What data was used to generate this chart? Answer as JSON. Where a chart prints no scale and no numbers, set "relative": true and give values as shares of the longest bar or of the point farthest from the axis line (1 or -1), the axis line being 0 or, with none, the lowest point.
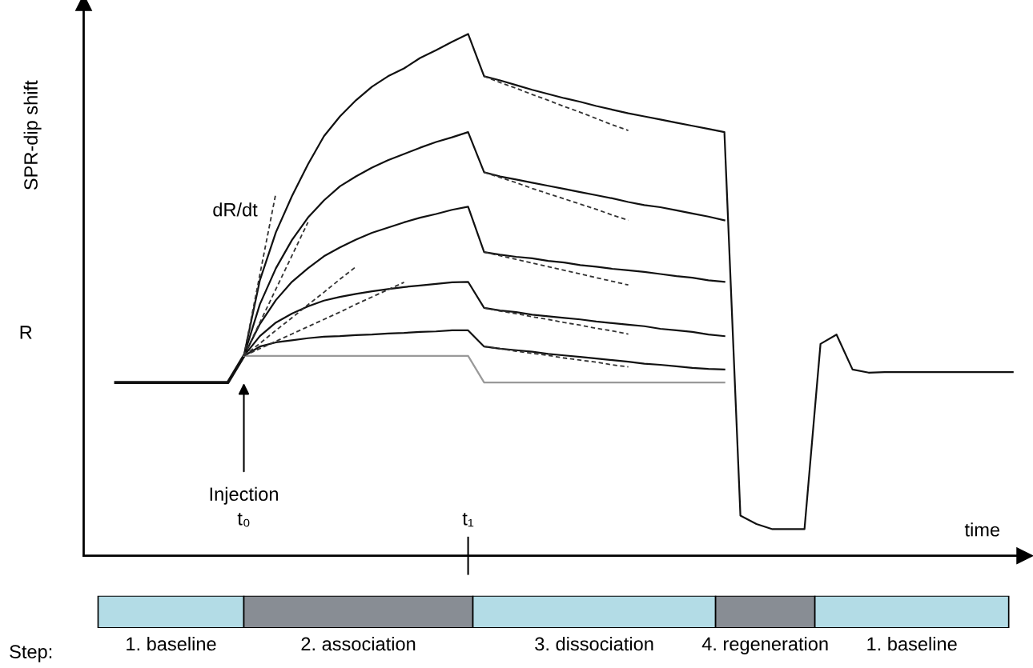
{
  "chart_data": {
    "type": "line",
    "relative": true,
    "ylabel": "SPR-dip shift",
    "xlabel": "time",
    "categories": [
      null,
      null,
      null,
      null,
      null,
      null,
      null,
      null,
      null,
      null,
      "t₀",
      null,
      null,
      null,
      null,
      null,
      null,
      null,
      null,
      null,
      null,
      null,
      null,
      null,
      "t₁",
      null,
      null,
      null,
      null,
      null,
      null,
      null,
      null,
      null,
      null,
      null,
      null,
      null,
      null,
      null,
      null,
      null,
      null,
      null,
      null,
      null,
      null,
      null,
      null,
      null,
      null,
      null,
      null,
      null,
      null,
      null,
      null,
      null,
      null
    ],
    "grid": false,
    "legend": false,
    "marker": "none",
    "series": [
      {
        "color": "#111111",
        "values": [
          null,
          null,
          0.332,
          0.332,
          0.332,
          0.332,
          0.332,
          0.332,
          0.332,
          0.332,
          0.383,
          null,
          null,
          null,
          null,
          null,
          null,
          null,
          null,
          null,
          null,
          null,
          null,
          null,
          null,
          null,
          null,
          null,
          null,
          null,
          null,
          null,
          null,
          null,
          null,
          null,
          null,
          null,
          null,
          null,
          null,
          null,
          null,
          null,
          null,
          null,
          null,
          null,
          null,
          null,
          null,
          null,
          null,
          null,
          null,
          null,
          null,
          null,
          null
        ]
      },
      {
        "color": "#111111",
        "values": [
          null,
          null,
          null,
          null,
          null,
          null,
          null,
          null,
          null,
          null,
          0.383,
          0.528,
          0.62,
          0.689,
          0.75,
          0.804,
          0.842,
          0.873,
          0.899,
          0.919,
          0.934,
          0.954,
          0.969,
          0.985,
          1.0,
          0.919,
          0.911,
          0.902,
          0.893,
          0.885,
          0.877,
          0.87,
          0.862,
          0.855,
          0.848,
          0.842,
          0.836,
          0.83,
          0.824,
          0.818,
          0.812,
          0.077,
          0.061,
          0.051,
          0.051,
          0.051,
          0.406,
          0.424,
          0.357,
          0.351,
          0.352,
          0.352,
          0.352,
          0.352,
          0.352,
          0.352,
          0.352,
          0.352,
          0.352
        ]
      },
      {
        "color": "#111111",
        "values": [
          null,
          null,
          null,
          null,
          null,
          null,
          null,
          null,
          null,
          null,
          0.383,
          0.482,
          0.551,
          0.605,
          0.648,
          0.681,
          0.708,
          0.727,
          0.744,
          0.758,
          0.77,
          0.782,
          0.793,
          0.802,
          0.812,
          0.735,
          0.727,
          0.721,
          0.715,
          0.709,
          0.703,
          0.697,
          0.691,
          0.685,
          0.678,
          0.672,
          0.668,
          0.662,
          0.656,
          0.65,
          0.643,
          null,
          null,
          null,
          null,
          null,
          null,
          null,
          null,
          null,
          null,
          null,
          null,
          null,
          null,
          null,
          null,
          null,
          null
        ]
      },
      {
        "color": "#111111",
        "values": [
          null,
          null,
          null,
          null,
          null,
          null,
          null,
          null,
          null,
          null,
          0.383,
          0.444,
          0.49,
          0.525,
          0.551,
          0.574,
          0.591,
          0.606,
          0.619,
          0.629,
          0.639,
          0.648,
          0.655,
          0.663,
          0.669,
          0.582,
          0.577,
          0.573,
          0.57,
          0.565,
          0.562,
          0.557,
          0.554,
          0.55,
          0.547,
          0.544,
          0.54,
          0.536,
          0.533,
          0.528,
          0.525,
          null,
          null,
          null,
          null,
          null,
          null,
          null,
          null,
          null,
          null,
          null,
          null,
          null,
          null,
          null,
          null,
          null,
          null
        ]
      },
      {
        "color": "#111111",
        "values": [
          null,
          null,
          null,
          null,
          null,
          null,
          null,
          null,
          null,
          null,
          0.383,
          0.421,
          0.447,
          0.464,
          0.478,
          0.489,
          0.496,
          0.502,
          0.507,
          0.511,
          0.515,
          0.518,
          0.521,
          0.524,
          0.525,
          0.475,
          0.47,
          0.467,
          0.462,
          0.459,
          0.456,
          0.453,
          0.449,
          0.446,
          0.443,
          0.44,
          0.435,
          0.432,
          0.429,
          0.424,
          0.421,
          null,
          null,
          null,
          null,
          null,
          null,
          null,
          null,
          null,
          null,
          null,
          null,
          null,
          null,
          null,
          null,
          null,
          null
        ]
      },
      {
        "color": "#111111",
        "values": [
          null,
          null,
          null,
          null,
          null,
          null,
          null,
          null,
          null,
          null,
          0.383,
          0.401,
          0.409,
          0.413,
          0.417,
          0.42,
          0.421,
          0.423,
          0.424,
          0.426,
          0.427,
          0.429,
          0.43,
          0.432,
          0.432,
          0.401,
          0.397,
          0.394,
          0.391,
          0.387,
          0.384,
          0.381,
          0.378,
          0.375,
          0.372,
          0.368,
          0.366,
          0.363,
          0.36,
          0.358,
          0.357,
          null,
          null,
          null,
          null,
          null,
          null,
          null,
          null,
          null,
          null,
          null,
          null,
          null,
          null,
          null,
          null,
          null,
          null
        ]
      },
      {
        "color": "#999999",
        "values": [
          null,
          null,
          null,
          null,
          null,
          null,
          null,
          null,
          null,
          null,
          0.383,
          0.383,
          0.383,
          0.383,
          0.383,
          0.383,
          0.383,
          0.383,
          0.383,
          0.383,
          0.383,
          0.383,
          0.383,
          0.383,
          0.383,
          0.332,
          0.332,
          0.332,
          0.332,
          0.332,
          0.332,
          0.332,
          0.332,
          0.332,
          0.332,
          0.332,
          0.332,
          0.332,
          0.332,
          0.332,
          0.332,
          null,
          null,
          null,
          null,
          null,
          null,
          null,
          null,
          null,
          null,
          null,
          null,
          null,
          null,
          null,
          null,
          null,
          null
        ]
      },
      {
        "color": "#333333",
        "line_style": "dashed",
        "values": [
          null,
          null,
          null,
          null,
          null,
          null,
          null,
          null,
          null,
          null,
          0.383,
          0.539,
          0.695,
          null,
          null,
          null,
          null,
          null,
          null,
          null,
          null,
          null,
          null,
          null,
          null,
          null,
          null,
          null,
          null,
          null,
          null,
          null,
          null,
          null,
          null,
          null,
          null,
          null,
          null,
          null,
          null,
          null,
          null,
          null,
          null,
          null,
          null,
          null,
          null,
          null,
          null,
          null,
          null,
          null,
          null,
          null,
          null,
          null,
          null
        ]
      },
      {
        "color": "#333333",
        "line_style": "dashed",
        "values": [
          null,
          null,
          null,
          null,
          null,
          null,
          null,
          null,
          null,
          null,
          0.383,
          0.447,
          0.511,
          0.575,
          0.639,
          null,
          null,
          null,
          null,
          null,
          null,
          null,
          null,
          null,
          null,
          null,
          null,
          null,
          null,
          null,
          null,
          null,
          null,
          null,
          null,
          null,
          null,
          null,
          null,
          null,
          null,
          null,
          null,
          null,
          null,
          null,
          null,
          null,
          null,
          null,
          null,
          null,
          null,
          null,
          null,
          null,
          null,
          null,
          null
        ]
      },
      {
        "color": "#333333",
        "line_style": "dashed",
        "values": [
          null,
          null,
          null,
          null,
          null,
          null,
          null,
          null,
          null,
          null,
          0.383,
          0.407,
          0.432,
          0.456,
          0.481,
          0.505,
          0.53,
          0.554,
          null,
          null,
          null,
          null,
          null,
          null,
          null,
          null,
          null,
          null,
          null,
          null,
          null,
          null,
          null,
          null,
          null,
          null,
          null,
          null,
          null,
          null,
          null,
          null,
          null,
          null,
          null,
          null,
          null,
          null,
          null,
          null,
          null,
          null,
          null,
          null,
          null,
          null,
          null,
          null,
          null
        ]
      },
      {
        "color": "#333333",
        "line_style": "dashed",
        "values": [
          null,
          null,
          null,
          null,
          null,
          null,
          null,
          null,
          null,
          null,
          0.383,
          0.397,
          0.411,
          0.425,
          0.439,
          0.453,
          0.467,
          0.482,
          0.496,
          0.51,
          0.524,
          null,
          null,
          null,
          null,
          null,
          null,
          null,
          null,
          null,
          null,
          null,
          null,
          null,
          null,
          null,
          null,
          null,
          null,
          null,
          null,
          null,
          null,
          null,
          null,
          null,
          null,
          null,
          null,
          null,
          null,
          null,
          null,
          null,
          null,
          null,
          null,
          null,
          null
        ]
      },
      {
        "color": "#333333",
        "line_style": "dashed",
        "values": [
          null,
          null,
          null,
          null,
          null,
          null,
          null,
          null,
          null,
          null,
          null,
          null,
          null,
          null,
          null,
          null,
          null,
          null,
          null,
          null,
          null,
          null,
          null,
          null,
          null,
          0.919,
          0.907,
          0.896,
          0.884,
          0.873,
          0.861,
          0.85,
          0.838,
          0.826,
          0.815,
          null,
          null,
          null,
          null,
          null,
          null,
          null,
          null,
          null,
          null,
          null,
          null,
          null,
          null,
          null,
          null,
          null,
          null,
          null,
          null,
          null,
          null,
          null,
          null
        ]
      },
      {
        "color": "#333333",
        "line_style": "dashed",
        "values": [
          null,
          null,
          null,
          null,
          null,
          null,
          null,
          null,
          null,
          null,
          null,
          null,
          null,
          null,
          null,
          null,
          null,
          null,
          null,
          null,
          null,
          null,
          null,
          null,
          null,
          0.735,
          0.725,
          0.715,
          0.704,
          0.694,
          0.684,
          0.674,
          0.664,
          0.653,
          0.643,
          null,
          null,
          null,
          null,
          null,
          null,
          null,
          null,
          null,
          null,
          null,
          null,
          null,
          null,
          null,
          null,
          null,
          null,
          null,
          null,
          null,
          null,
          null,
          null
        ]
      },
      {
        "color": "#333333",
        "line_style": "dashed",
        "values": [
          null,
          null,
          null,
          null,
          null,
          null,
          null,
          null,
          null,
          null,
          null,
          null,
          null,
          null,
          null,
          null,
          null,
          null,
          null,
          null,
          null,
          null,
          null,
          null,
          null,
          0.582,
          0.575,
          0.568,
          0.561,
          0.554,
          0.547,
          0.54,
          0.533,
          0.526,
          0.519,
          null,
          null,
          null,
          null,
          null,
          null,
          null,
          null,
          null,
          null,
          null,
          null,
          null,
          null,
          null,
          null,
          null,
          null,
          null,
          null,
          null,
          null,
          null,
          null
        ]
      },
      {
        "color": "#333333",
        "line_style": "dashed",
        "values": [
          null,
          null,
          null,
          null,
          null,
          null,
          null,
          null,
          null,
          null,
          null,
          null,
          null,
          null,
          null,
          null,
          null,
          null,
          null,
          null,
          null,
          null,
          null,
          null,
          null,
          0.475,
          0.469,
          0.464,
          0.458,
          0.453,
          0.447,
          0.442,
          0.436,
          0.431,
          0.425,
          null,
          null,
          null,
          null,
          null,
          null,
          null,
          null,
          null,
          null,
          null,
          null,
          null,
          null,
          null,
          null,
          null,
          null,
          null,
          null,
          null,
          null,
          null,
          null
        ]
      },
      {
        "color": "#333333",
        "line_style": "dashed",
        "values": [
          null,
          null,
          null,
          null,
          null,
          null,
          null,
          null,
          null,
          null,
          null,
          null,
          null,
          null,
          null,
          null,
          null,
          null,
          null,
          null,
          null,
          null,
          null,
          null,
          null,
          0.401,
          0.397,
          0.392,
          0.388,
          0.384,
          0.379,
          0.375,
          0.371,
          0.366,
          0.362,
          null,
          null,
          null,
          null,
          null,
          null,
          null,
          null,
          null,
          null,
          null,
          null,
          null,
          null,
          null,
          null,
          null,
          null,
          null,
          null,
          null,
          null,
          null,
          null
        ]
      }
    ],
    "annotations": [
      "Injection",
      "dR/dt",
      "R",
      "Step:",
      "1. baseline",
      "2. association",
      "3. dissociation",
      "4. regeneration",
      "1. baseline"
    ]
  }
}
